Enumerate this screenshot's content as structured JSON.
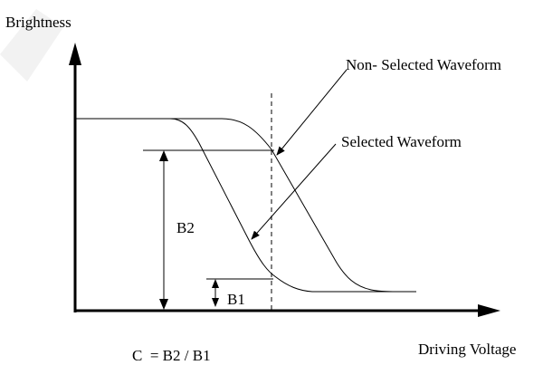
{
  "axes": {
    "y_label": "Brightness",
    "x_label": "Driving Voltage"
  },
  "annotations": {
    "non_selected": "Non- Selected Waveform",
    "selected": "Selected Waveform",
    "b2": "B2",
    "b1": "B1",
    "formula": "C  = B2 / B1"
  },
  "colors": {
    "ink": "#000000",
    "background": "#ffffff"
  }
}
